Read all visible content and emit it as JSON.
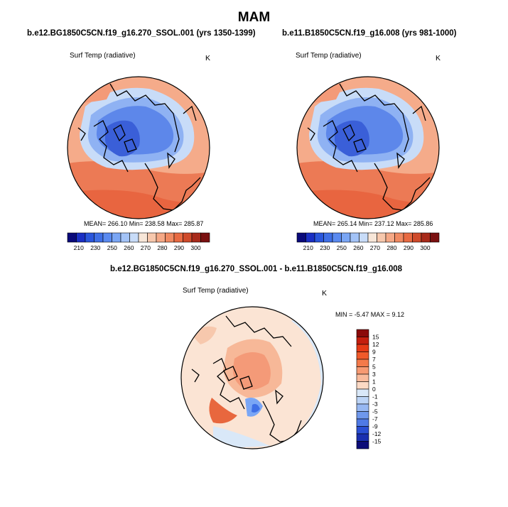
{
  "title": "MAM",
  "panels": [
    {
      "case": "b.e12.BG1850C5CN.f19_g16.270_SSOL.001 (yrs 1350-1399)",
      "variable": "Surf Temp (radiative)",
      "units": "K",
      "stats": "MEAN= 266.10  Min= 238.58  Max= 285.87"
    },
    {
      "case": "b.e11.B1850C5CN.f19_g16.008 (yrs 981-1000)",
      "variable": "Surf Temp (radiative)",
      "units": "K",
      "stats": "MEAN= 265.14  Min= 237.12  Max= 285.86"
    },
    {
      "case": "b.e12.BG1850C5CN.f19_g16.270_SSOL.001 - b.e11.B1850C5CN.f19_g16.008",
      "variable": "Surf Temp (radiative)",
      "units": "K",
      "stats": "MIN =  -5.47 MAX =   9.12"
    }
  ],
  "chart_data": [
    {
      "type": "heatmap",
      "projection": "polar-stereographic-north",
      "title": "b.e12.BG1850C5CN.f19_g16.270_SSOL.001 (yrs 1350-1399)",
      "variable": "Surf Temp (radiative)",
      "units": "K",
      "mean": 266.1,
      "min": 238.58,
      "max": 285.87,
      "colorbar_orientation": "horizontal",
      "colorbar_ticks": [
        210,
        230,
        250,
        260,
        270,
        280,
        290,
        300
      ],
      "colors": [
        "#0a0a7a",
        "#1a2fc4",
        "#2a56dc",
        "#3f6fe6",
        "#5a8af0",
        "#7aa6f5",
        "#a3c3f7",
        "#c8dcf8",
        "#f7e6d8",
        "#f7c8ad",
        "#f5a886",
        "#f08a62",
        "#e86a42",
        "#cf4a2a",
        "#a82a1a",
        "#7a1010"
      ]
    },
    {
      "type": "heatmap",
      "projection": "polar-stereographic-north",
      "title": "b.e11.B1850C5CN.f19_g16.008 (yrs 981-1000)",
      "variable": "Surf Temp (radiative)",
      "units": "K",
      "mean": 265.14,
      "min": 237.12,
      "max": 285.86,
      "colorbar_orientation": "horizontal",
      "colorbar_ticks": [
        210,
        230,
        250,
        260,
        270,
        280,
        290,
        300
      ],
      "colors": [
        "#0a0a7a",
        "#1a2fc4",
        "#2a56dc",
        "#3f6fe6",
        "#5a8af0",
        "#7aa6f5",
        "#a3c3f7",
        "#c8dcf8",
        "#f7e6d8",
        "#f7c8ad",
        "#f5a886",
        "#f08a62",
        "#e86a42",
        "#cf4a2a",
        "#a82a1a",
        "#7a1010"
      ]
    },
    {
      "type": "heatmap",
      "projection": "polar-stereographic-north",
      "title": "b.e12.BG1850C5CN.f19_g16.270_SSOL.001 - b.e11.B1850C5CN.f19_g16.008",
      "variable": "Surf Temp (radiative)",
      "units": "K",
      "min": -5.47,
      "max": 9.12,
      "colorbar_orientation": "vertical",
      "colorbar_ticks": [
        15,
        12,
        9,
        7,
        5,
        3,
        1,
        0,
        -1,
        -3,
        -5,
        -7,
        -9,
        -12,
        -15
      ],
      "colors": [
        "#8b0a0a",
        "#c41e0e",
        "#e63a16",
        "#f05a2a",
        "#f47a4a",
        "#f79a72",
        "#f9bb9c",
        "#fbd9c4",
        "#d9e8f8",
        "#bcd4f6",
        "#97b8f2",
        "#6f98ec",
        "#4f7ae6",
        "#2a4fd4",
        "#1a2fb0",
        "#0c0c78"
      ]
    }
  ]
}
